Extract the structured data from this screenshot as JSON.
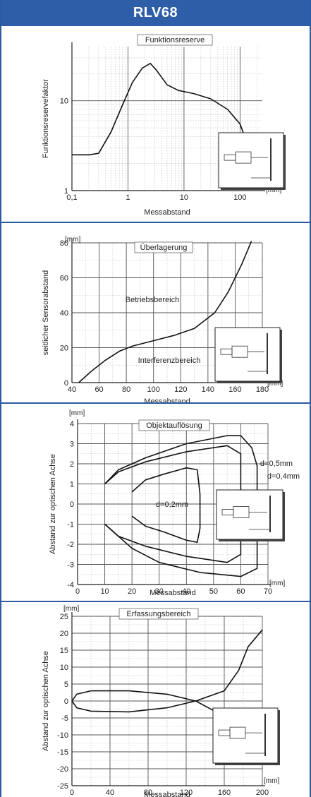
{
  "header": {
    "title": "RLV68"
  },
  "chart_data": [
    {
      "type": "line",
      "title": "Funktionsreserve",
      "xlabel": "Messabstand",
      "ylabel": "Funktionsreservefaktor",
      "x_unit": "[mm]",
      "xscale": "log",
      "yscale": "log",
      "xlim": [
        0.1,
        250
      ],
      "ylim": [
        1,
        40
      ],
      "x_ticks": [
        "0,1",
        "1",
        "10",
        "100"
      ],
      "y_ticks": [
        "1",
        "10"
      ],
      "grid": true,
      "series": [
        {
          "points": [
            [
              0.1,
              2.5
            ],
            [
              0.2,
              2.5
            ],
            [
              0.3,
              2.6
            ],
            [
              0.5,
              4.5
            ],
            [
              0.8,
              9
            ],
            [
              1.2,
              16
            ],
            [
              1.8,
              23
            ],
            [
              2.5,
              26
            ],
            [
              3.2,
              22
            ],
            [
              5,
              15
            ],
            [
              8,
              13
            ],
            [
              15,
              12
            ],
            [
              30,
              10.5
            ],
            [
              60,
              8
            ],
            [
              100,
              5.5
            ],
            [
              150,
              2.8
            ],
            [
              200,
              1.2
            ]
          ]
        }
      ]
    },
    {
      "type": "line",
      "title": "Überlagerung",
      "xlabel": "Messabstand",
      "ylabel": "seitlicher Sensorabstand",
      "y_unit": "[mm]",
      "x_unit": "[mm]",
      "xlim": [
        40,
        180
      ],
      "ylim": [
        0,
        80
      ],
      "x_ticks": [
        "40",
        "60",
        "80",
        "100",
        "120",
        "140",
        "160",
        "180"
      ],
      "y_ticks": [
        "0",
        "20",
        "40",
        "60",
        "80"
      ],
      "grid": true,
      "annotations": [
        "Betriebsbereich",
        "Interferenzbereich"
      ],
      "series": [
        {
          "points": [
            [
              45,
              0
            ],
            [
              55,
              7
            ],
            [
              65,
              13
            ],
            [
              75,
              18
            ],
            [
              85,
              21
            ],
            [
              100,
              24
            ],
            [
              115,
              27
            ],
            [
              130,
              31
            ],
            [
              145,
              40
            ],
            [
              155,
              52
            ],
            [
              165,
              68
            ],
            [
              172,
              81
            ]
          ]
        }
      ]
    },
    {
      "type": "line",
      "title": "Objektauflösung",
      "xlabel": "Messabstand",
      "ylabel": "Abstand zur optischen Achse",
      "y_unit": "[mm]",
      "x_unit": "[mm]",
      "xlim": [
        0,
        70
      ],
      "ylim": [
        -4,
        4
      ],
      "x_ticks": [
        "0",
        "10",
        "20",
        "30",
        "40",
        "50",
        "60",
        "70"
      ],
      "y_ticks": [
        "4",
        "3",
        "2",
        "1",
        "0",
        "-1",
        "-2",
        "-3",
        "-4"
      ],
      "grid": true,
      "annotations": [
        "d=0,2mm",
        "d=0,4mm",
        "d=0,5mm"
      ],
      "series": [
        {
          "name": "d=0,2mm",
          "points": [
            [
              20,
              0.6
            ],
            [
              25,
              1.2
            ],
            [
              32,
              1.5
            ],
            [
              40,
              1.8
            ],
            [
              44,
              1.7
            ],
            [
              45,
              0.5
            ],
            [
              45,
              -1.2
            ],
            [
              44,
              -1.9
            ],
            [
              40,
              -1.8
            ],
            [
              32,
              -1.4
            ],
            [
              25,
              -1.1
            ],
            [
              20,
              -0.6
            ]
          ]
        },
        {
          "name": "d=0,4mm",
          "points": [
            [
              10,
              1
            ],
            [
              15,
              1.6
            ],
            [
              25,
              2.1
            ],
            [
              40,
              2.6
            ],
            [
              55,
              2.9
            ],
            [
              60,
              2.5
            ],
            [
              60,
              -2.5
            ],
            [
              55,
              -2.9
            ],
            [
              40,
              -2.6
            ],
            [
              25,
              -2.1
            ],
            [
              15,
              -1.6
            ],
            [
              10,
              -1
            ]
          ]
        },
        {
          "name": "d=0,5mm",
          "points": [
            [
              10,
              1
            ],
            [
              15,
              1.7
            ],
            [
              25,
              2.3
            ],
            [
              40,
              3
            ],
            [
              55,
              3.4
            ],
            [
              60,
              3.4
            ],
            [
              64,
              2.8
            ],
            [
              66,
              1.9
            ],
            [
              66,
              -3.2
            ],
            [
              60,
              -3.6
            ],
            [
              45,
              -3.4
            ],
            [
              30,
              -2.9
            ],
            [
              20,
              -2.2
            ],
            [
              15,
              -1.6
            ],
            [
              10,
              -1
            ]
          ]
        }
      ]
    },
    {
      "type": "line",
      "title": "Erfassungsbereich",
      "xlabel": "Messabstand",
      "ylabel": "Abstand zur optischen Achse",
      "y_unit": "[mm]",
      "x_unit": "[mm]",
      "xlim": [
        0,
        200
      ],
      "ylim": [
        -25,
        25
      ],
      "x_ticks": [
        "0",
        "40",
        "80",
        "120",
        "160",
        "200"
      ],
      "y_ticks": [
        "25",
        "20",
        "15",
        "10",
        "5",
        "0",
        "-5",
        "-10",
        "-15",
        "-20",
        "-25"
      ],
      "grid": true,
      "series": [
        {
          "points": [
            [
              0,
              0
            ],
            [
              5,
              -2
            ],
            [
              20,
              -3
            ],
            [
              60,
              -3.2
            ],
            [
              100,
              -2
            ],
            [
              130,
              0
            ],
            [
              160,
              3
            ],
            [
              175,
              9
            ],
            [
              185,
              16
            ],
            [
              200,
              21
            ]
          ]
        },
        {
          "points": [
            [
              0,
              0
            ],
            [
              5,
              2
            ],
            [
              20,
              3
            ],
            [
              60,
              3
            ],
            [
              100,
              2
            ],
            [
              130,
              0
            ],
            [
              150,
              -3
            ],
            [
              165,
              -6
            ]
          ]
        }
      ]
    }
  ]
}
